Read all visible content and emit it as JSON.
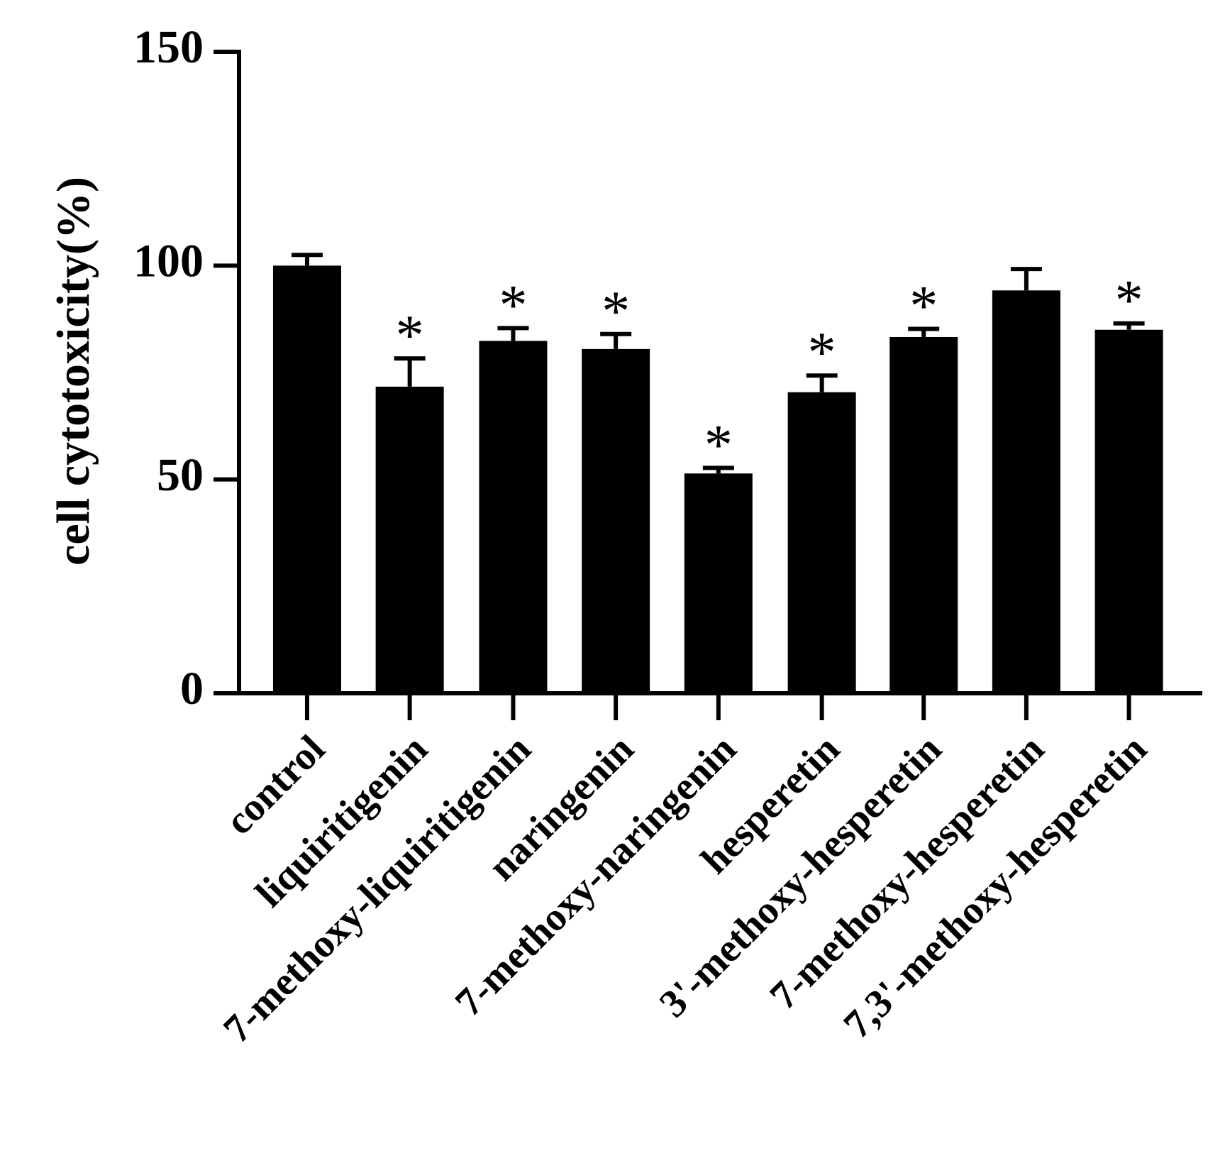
{
  "chart_data": {
    "type": "bar",
    "y_label": "cell cytotoxicity(%)",
    "categories": [
      "control",
      "liquiritigenin",
      "7-methoxy-liquiritigenin",
      "naringenin",
      "7-methoxy-naringenin",
      "hesperetin",
      "3'-methoxy-hesperetin",
      "7-methoxy-hesperetin",
      "7,3'-methoxy-hesperetin"
    ],
    "values": [
      100,
      71.7,
      82.4,
      80.5,
      51.4,
      70.4,
      83.3,
      94.2,
      85
    ],
    "errors": [
      2.5,
      6.6,
      3,
      3.5,
      1.3,
      3.9,
      1.9,
      5,
      1.5
    ],
    "markers": [
      null,
      "*",
      "*",
      "*",
      "*",
      "*",
      "*",
      null,
      "*"
    ],
    "color": "#000000",
    "ylim": [
      0,
      150
    ],
    "yticks": [
      0,
      50,
      100,
      150
    ]
  }
}
